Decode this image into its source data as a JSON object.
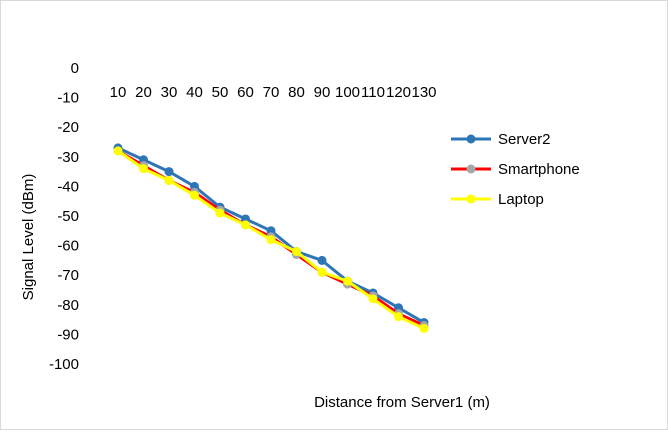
{
  "chart_data": {
    "type": "line",
    "title": "",
    "xlabel": "Distance from Server1 (m)",
    "ylabel": "Signal Level (dBm)",
    "x_position": "top",
    "categories": [
      "10",
      "20",
      "30",
      "40",
      "50",
      "60",
      "70",
      "80",
      "90",
      "100",
      "110",
      "120",
      "130"
    ],
    "ylim": [
      -100,
      0
    ],
    "y_ticks": [
      "0",
      "-10",
      "-20",
      "-30",
      "-40",
      "-50",
      "-60",
      "-70",
      "-80",
      "-90",
      "-100"
    ],
    "grid": false,
    "legend_position": "right",
    "series": [
      {
        "name": "Server2",
        "color": "#2E75B6",
        "marker_color": "#2E75B6",
        "values": [
          -27,
          -31,
          -35,
          -40,
          -47,
          -51,
          -55,
          -62,
          -65,
          -72,
          -76,
          -81,
          -86
        ]
      },
      {
        "name": "Smartphone",
        "color": "#FF0000",
        "marker_color": "#A6A6A6",
        "values": [
          -28,
          -33,
          -38,
          -42,
          -48,
          -53,
          -57,
          -63,
          -69,
          -73,
          -77,
          -83,
          -87
        ]
      },
      {
        "name": "Laptop",
        "color": "#FFFF00",
        "marker_color": "#FFFF00",
        "values": [
          -28,
          -34,
          -38,
          -43,
          -49,
          -53,
          -58,
          -62,
          -69,
          -72,
          -78,
          -84,
          -88
        ]
      }
    ]
  }
}
